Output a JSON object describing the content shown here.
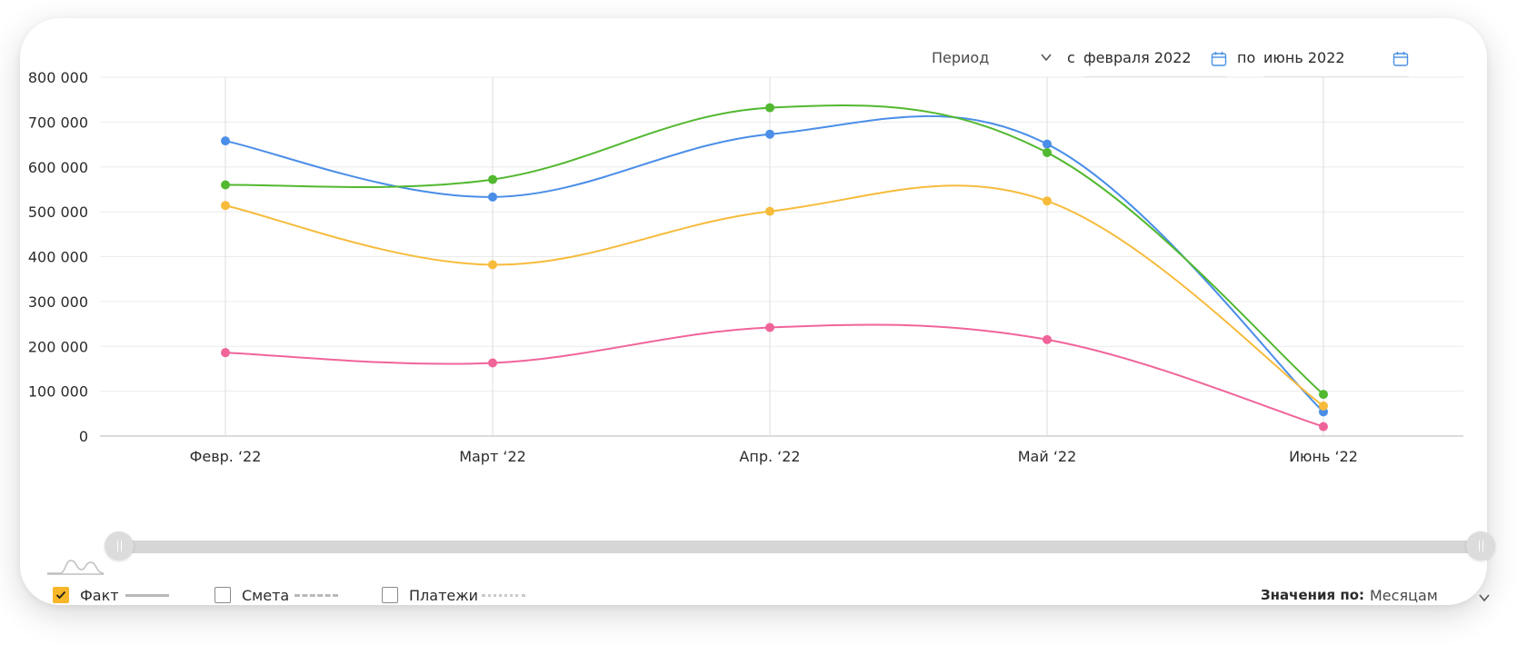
{
  "controls": {
    "period_label": "Период",
    "from_prefix": "с",
    "from_value": "февраля 2022",
    "to_prefix": "по",
    "to_value": "июнь 2022",
    "accent_color": "#4a90e2"
  },
  "legend": {
    "fact_label": "Факт",
    "fact_checked": true,
    "smeta_label": "Смета",
    "smeta_checked": false,
    "payments_label": "Платежи",
    "payments_checked": false,
    "values_by_label": "Значения по:",
    "values_by_value": "Месяцам",
    "check_color": "#f7b728"
  },
  "chart_data": {
    "type": "line",
    "categories": [
      "Февр. ‘22",
      "Март ‘22",
      "Апр. ‘22",
      "Май ‘22",
      "Июнь ‘22"
    ],
    "series": [
      {
        "color": "#4a8ee8",
        "values": [
          658000,
          533000,
          673000,
          651000,
          54000
        ]
      },
      {
        "color": "#52b830",
        "values": [
          560000,
          572000,
          732000,
          632000,
          93000
        ]
      },
      {
        "color": "#f7bb3c",
        "values": [
          514000,
          382000,
          501000,
          524000,
          67000
        ]
      },
      {
        "color": "#f0649a",
        "values": [
          186000,
          163000,
          242000,
          215000,
          21000
        ]
      }
    ],
    "y_ticks": [
      0,
      100000,
      200000,
      300000,
      400000,
      500000,
      600000,
      700000,
      800000
    ],
    "y_tick_labels": [
      "0",
      "100 000",
      "200 000",
      "300 000",
      "400 000",
      "500 000",
      "600 000",
      "700 000",
      "800 000"
    ],
    "ylim": [
      0,
      800000
    ],
    "grid": true,
    "title": "",
    "xlabel": "",
    "ylabel": ""
  }
}
